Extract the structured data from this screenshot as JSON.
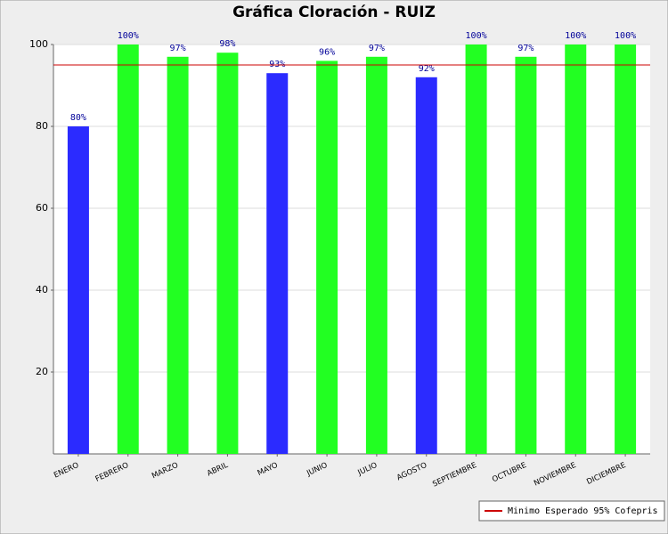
{
  "chart_data": {
    "type": "bar",
    "title": "Gráfica Cloración - RUIZ",
    "categories": [
      "ENERO",
      "FEBRERO",
      "MARZO",
      "ABRIL",
      "MAYO",
      "JUNIO",
      "JULIO",
      "AGOSTO",
      "SEPTIEMBRE",
      "OCTUBRE",
      "NOVIEMBRE",
      "DICIEMBRE"
    ],
    "values": [
      80,
      100,
      97,
      98,
      93,
      96,
      97,
      92,
      100,
      97,
      100,
      100
    ],
    "value_labels": [
      "80%",
      "100%",
      "97%",
      "98%",
      "93%",
      "96%",
      "97%",
      "92%",
      "100%",
      "97%",
      "100%",
      "100%"
    ],
    "colors": [
      "#2b2bff",
      "#22ff22",
      "#22ff22",
      "#22ff22",
      "#2b2bff",
      "#22ff22",
      "#22ff22",
      "#2b2bff",
      "#22ff22",
      "#22ff22",
      "#22ff22",
      "#22ff22"
    ],
    "threshold": {
      "value": 95,
      "label": "Minimo Esperado 95% Cofepris",
      "color": "#cc0000"
    },
    "ylim": [
      0,
      100
    ],
    "yticks": [
      20,
      40,
      60,
      80,
      100
    ],
    "grid": true,
    "legend": "bottom-right"
  }
}
